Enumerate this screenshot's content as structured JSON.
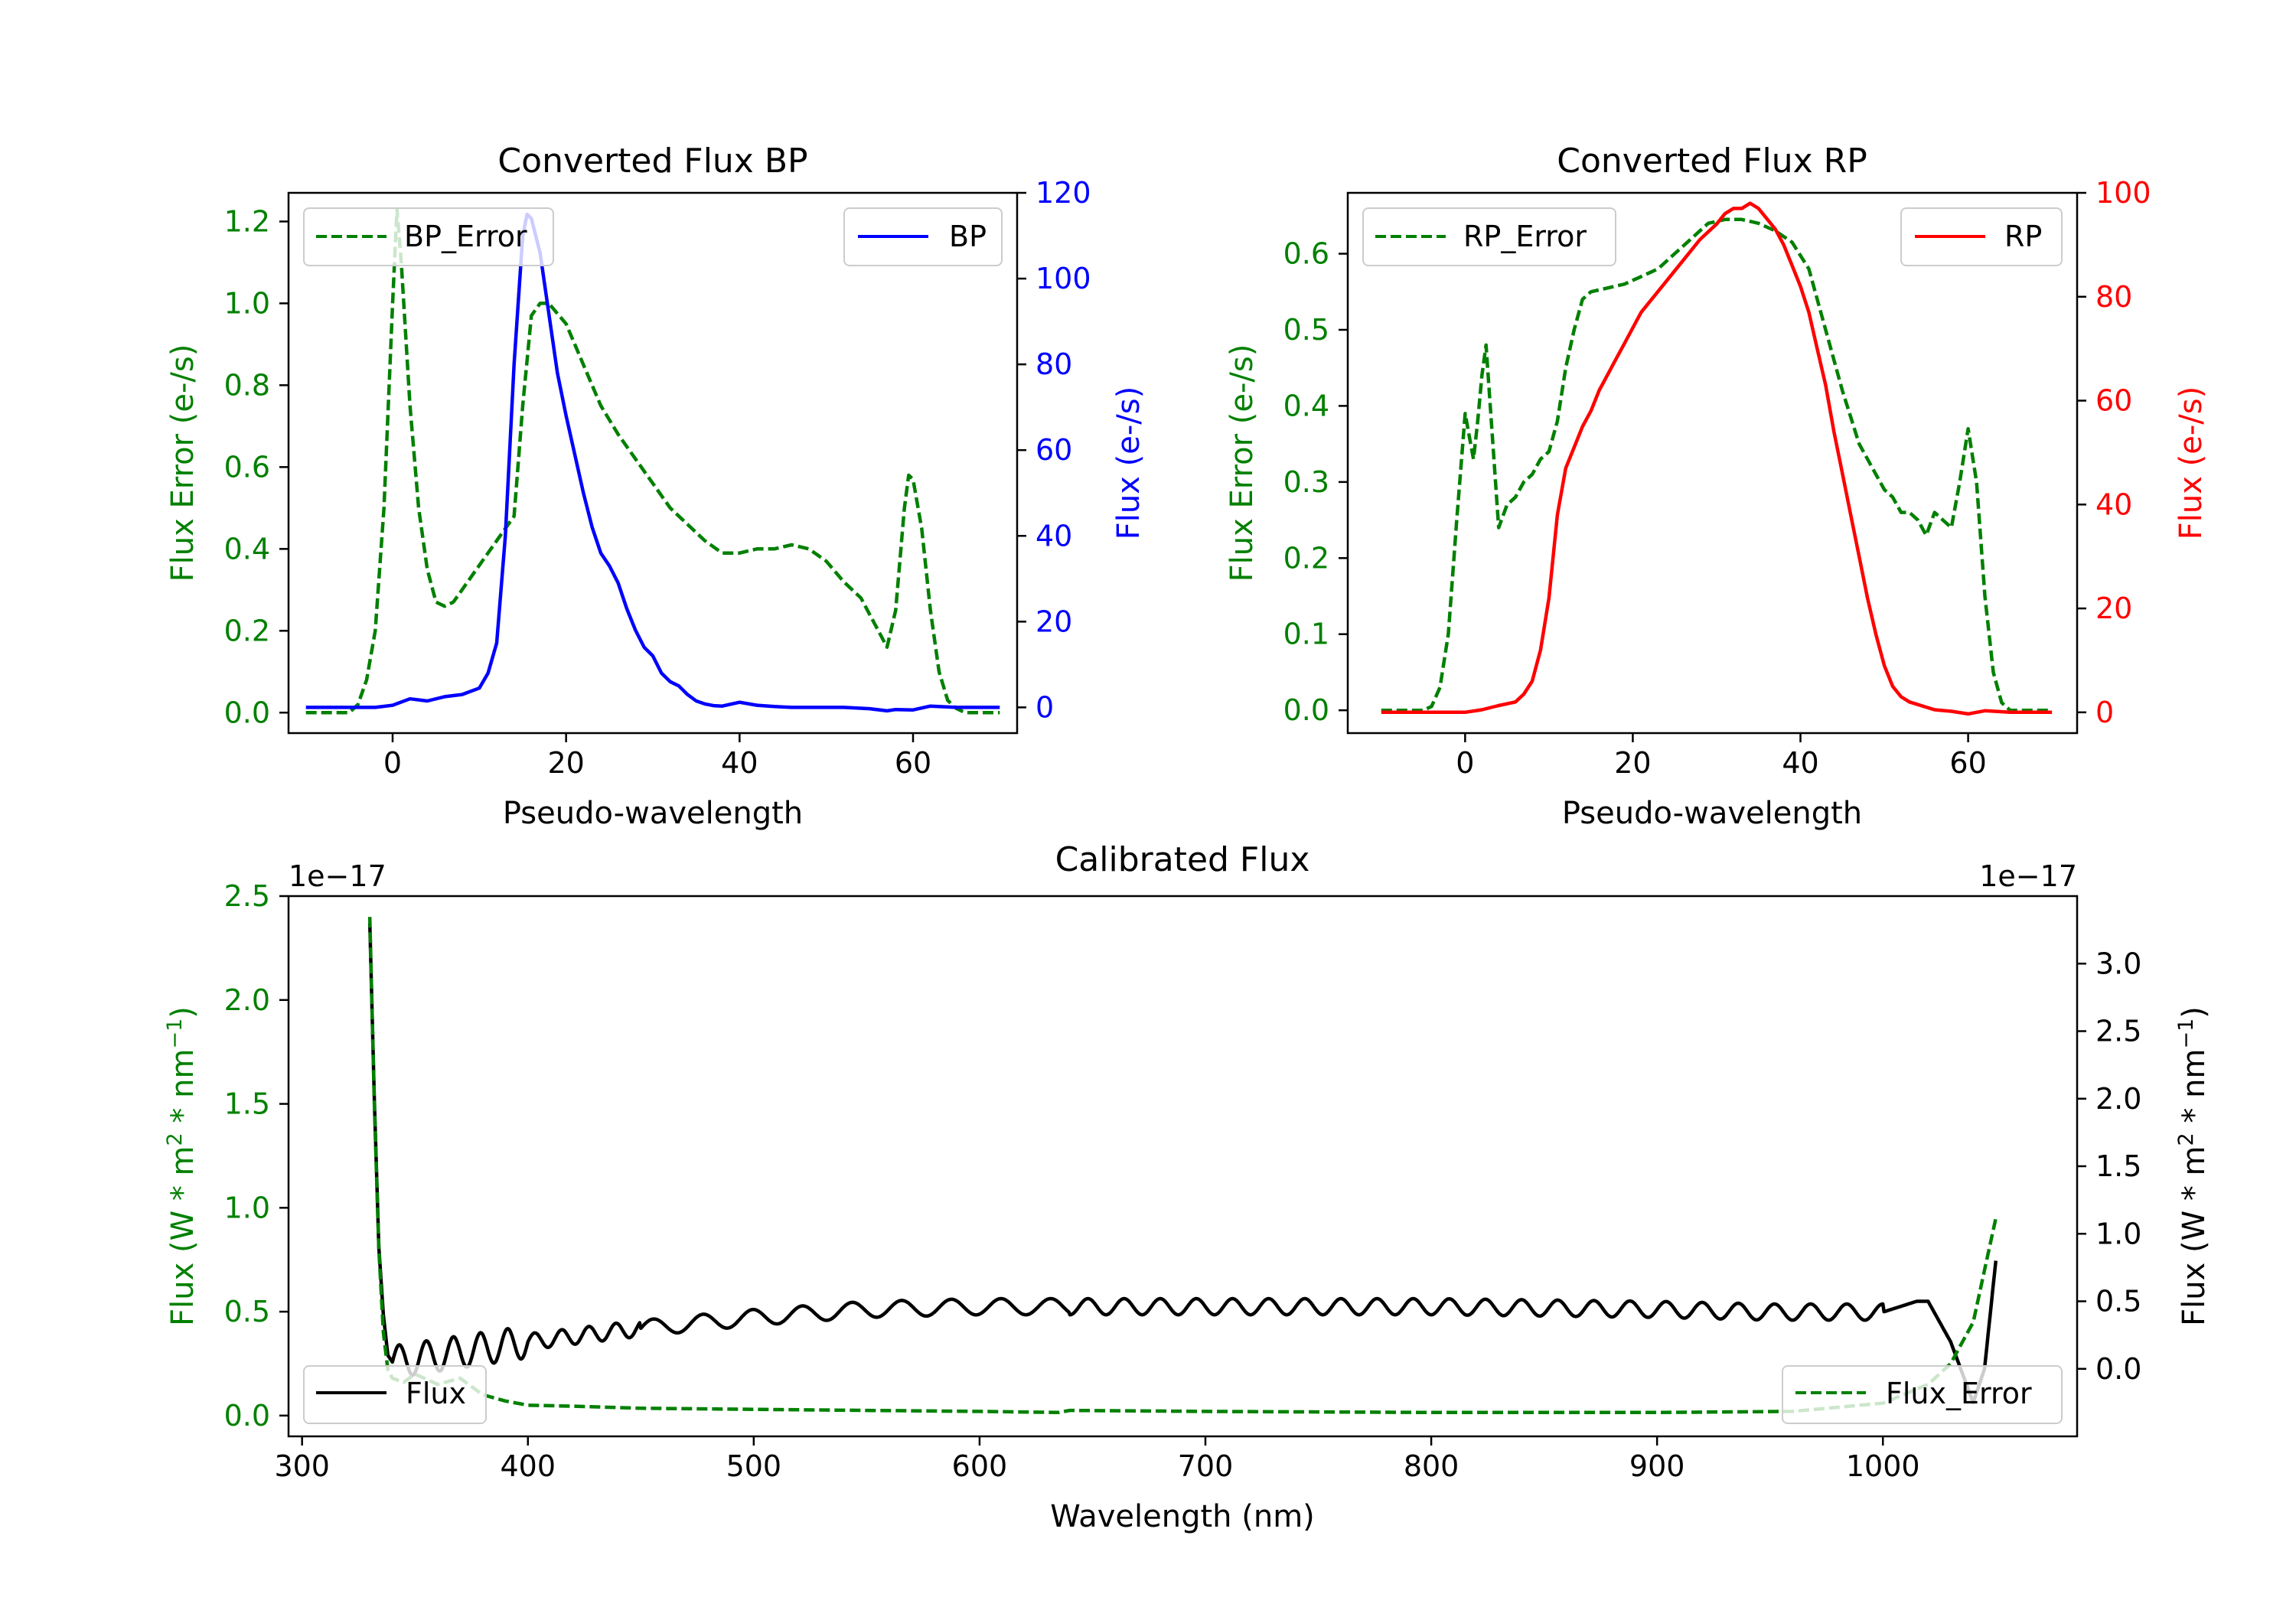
{
  "chart_data": [
    {
      "id": "bp",
      "type": "line",
      "title": "Converted Flux BP",
      "xlabel": "Pseudo-wavelength",
      "ylabel_left": "Flux Error (e-/s)",
      "ylabel_right": "Flux (e-/s)",
      "xlim": [
        -12,
        72
      ],
      "ylim_left": [
        -0.05,
        1.27
      ],
      "ylim_right": [
        -6,
        120
      ],
      "xticks": [
        0,
        20,
        40,
        60
      ],
      "yticks_left": [
        0.0,
        0.2,
        0.4,
        0.6,
        0.8,
        1.0,
        1.2
      ],
      "ytick_labels_left": [
        "0.0",
        "0.2",
        "0.4",
        "0.6",
        "0.8",
        "1.0",
        "1.2"
      ],
      "yticks_right": [
        0,
        20,
        40,
        60,
        80,
        100,
        120
      ],
      "ytick_labels_right": [
        "0",
        "20",
        "40",
        "60",
        "80",
        "100",
        "120"
      ],
      "colors": {
        "left_axis": "#008000",
        "right_axis": "#0000ff"
      },
      "series": [
        {
          "name": "BP_Error",
          "axis": "left",
          "style": "dashed",
          "color": "#008000",
          "x": [
            -10,
            -5,
            -4,
            -3,
            -2,
            -1,
            0,
            0.5,
            1,
            2,
            3,
            4,
            5,
            6,
            7,
            8,
            10,
            12,
            14,
            15,
            16,
            17,
            18,
            20,
            22,
            24,
            26,
            28,
            30,
            32,
            34,
            36,
            38,
            40,
            42,
            44,
            46,
            48,
            50,
            52,
            54,
            55,
            56,
            57,
            58,
            59,
            59.5,
            60,
            61,
            62,
            63,
            64,
            65,
            66,
            70
          ],
          "y": [
            0.0,
            0.0,
            0.02,
            0.08,
            0.2,
            0.5,
            1.0,
            1.23,
            1.1,
            0.75,
            0.5,
            0.35,
            0.27,
            0.26,
            0.27,
            0.3,
            0.36,
            0.42,
            0.48,
            0.75,
            0.97,
            1.0,
            1.0,
            0.95,
            0.85,
            0.75,
            0.68,
            0.62,
            0.56,
            0.5,
            0.46,
            0.42,
            0.39,
            0.39,
            0.4,
            0.4,
            0.41,
            0.4,
            0.37,
            0.32,
            0.28,
            0.24,
            0.2,
            0.16,
            0.25,
            0.5,
            0.58,
            0.57,
            0.45,
            0.25,
            0.1,
            0.03,
            0.01,
            0.0,
            0.0
          ]
        },
        {
          "name": "BP",
          "axis": "right",
          "style": "solid",
          "color": "#0000ff",
          "x": [
            -10,
            -5,
            -2,
            0,
            2,
            4,
            6,
            8,
            10,
            11,
            12,
            13,
            14,
            15,
            15.5,
            16,
            17,
            18,
            19,
            20,
            21,
            22,
            23,
            24,
            25,
            26,
            27,
            28,
            29,
            30,
            31,
            32,
            33,
            34,
            35,
            36,
            37,
            38,
            40,
            42,
            44,
            46,
            48,
            50,
            52,
            55,
            57,
            58,
            60,
            62,
            65,
            70
          ],
          "y": [
            0,
            0,
            0,
            0.5,
            2,
            1.5,
            2.5,
            3,
            4.5,
            8,
            15,
            40,
            80,
            110,
            115,
            114,
            106,
            92,
            78,
            68,
            59,
            50,
            42,
            36,
            33,
            29,
            23,
            18,
            14,
            12,
            8,
            6,
            5,
            3,
            1.5,
            0.8,
            0.4,
            0.3,
            1.2,
            0.5,
            0.2,
            0.0,
            0.0,
            0.0,
            0.0,
            -0.3,
            -0.8,
            -0.5,
            -0.6,
            0.3,
            0.0,
            0.0
          ]
        }
      ],
      "legend": [
        {
          "label": "BP_Error",
          "placement": "top-left"
        },
        {
          "label": "BP",
          "placement": "top-right"
        }
      ]
    },
    {
      "id": "rp",
      "type": "line",
      "title": "Converted Flux RP",
      "xlabel": "Pseudo-wavelength",
      "ylabel_left": "Flux Error (e-/s)",
      "ylabel_right": "Flux (e-/s)",
      "xlim": [
        -14,
        73
      ],
      "ylim_left": [
        -0.03,
        0.68
      ],
      "ylim_right": [
        -4,
        100
      ],
      "xticks": [
        0,
        20,
        40,
        60
      ],
      "yticks_left": [
        0.0,
        0.1,
        0.2,
        0.3,
        0.4,
        0.5,
        0.6
      ],
      "ytick_labels_left": [
        "0.0",
        "0.1",
        "0.2",
        "0.3",
        "0.4",
        "0.5",
        "0.6"
      ],
      "yticks_right": [
        0,
        20,
        40,
        60,
        80,
        100
      ],
      "ytick_labels_right": [
        "0",
        "20",
        "40",
        "60",
        "80",
        "100"
      ],
      "colors": {
        "left_axis": "#008000",
        "right_axis": "#ff0000"
      },
      "series": [
        {
          "name": "RP_Error",
          "axis": "left",
          "style": "dashed",
          "color": "#008000",
          "x": [
            -10,
            -5,
            -4,
            -3,
            -2,
            -1,
            0,
            0.5,
            1,
            1.5,
            2,
            2.5,
            3,
            4,
            5,
            6,
            7,
            8,
            9,
            10,
            11,
            12,
            13,
            14,
            15,
            17,
            19,
            21,
            23,
            25,
            27,
            29,
            31,
            33,
            35,
            37,
            39,
            41,
            43,
            45,
            47,
            49,
            50,
            51,
            52,
            53,
            54,
            55,
            56,
            57,
            58,
            59,
            60,
            61,
            62,
            63,
            64,
            65,
            70
          ],
          "y": [
            0.0,
            0.0,
            0.005,
            0.03,
            0.1,
            0.25,
            0.39,
            0.36,
            0.33,
            0.38,
            0.44,
            0.48,
            0.4,
            0.24,
            0.27,
            0.28,
            0.3,
            0.31,
            0.33,
            0.34,
            0.38,
            0.45,
            0.5,
            0.54,
            0.55,
            0.555,
            0.56,
            0.57,
            0.58,
            0.6,
            0.62,
            0.64,
            0.645,
            0.645,
            0.64,
            0.63,
            0.615,
            0.58,
            0.5,
            0.42,
            0.35,
            0.31,
            0.29,
            0.28,
            0.26,
            0.26,
            0.25,
            0.23,
            0.26,
            0.25,
            0.24,
            0.3,
            0.37,
            0.3,
            0.15,
            0.05,
            0.01,
            0.0,
            0.0
          ]
        },
        {
          "name": "RP",
          "axis": "right",
          "style": "solid",
          "color": "#ff0000",
          "x": [
            -10,
            -5,
            0,
            2,
            4,
            6,
            7,
            8,
            9,
            10,
            11,
            12,
            13,
            14,
            15,
            16,
            17,
            18,
            19,
            20,
            21,
            22,
            24,
            26,
            28,
            30,
            31,
            32,
            33,
            34,
            35,
            36,
            37,
            38,
            39,
            40,
            41,
            42,
            43,
            44,
            45,
            46,
            47,
            48,
            49,
            50,
            51,
            52,
            53,
            54,
            55,
            56,
            58,
            60,
            62,
            65,
            70
          ],
          "y": [
            0,
            0,
            0,
            0.5,
            1.3,
            2,
            3.5,
            6,
            12,
            22,
            38,
            47,
            51,
            55,
            58,
            62,
            65,
            68,
            71,
            74,
            77,
            79,
            83,
            87,
            91,
            94,
            96,
            97,
            97,
            98,
            97,
            95,
            93,
            90,
            86,
            82,
            77,
            70,
            63,
            54,
            46,
            38,
            30,
            22,
            15,
            9,
            5,
            3,
            2,
            1.5,
            1,
            0.5,
            0.2,
            -0.3,
            0.3,
            0.0,
            0.0
          ]
        }
      ],
      "legend": [
        {
          "label": "RP_Error",
          "placement": "top-left"
        },
        {
          "label": "RP",
          "placement": "top-right"
        }
      ]
    },
    {
      "id": "cal",
      "type": "line",
      "title": "Calibrated Flux",
      "xlabel": "Wavelength (nm)",
      "ylabel_left": "Flux (W * m^2 * nm^-1)",
      "ylabel_right": "Flux (W * m^2 * nm^-1)",
      "xlim": [
        294,
        1086
      ],
      "ylim_left": [
        -0.1,
        2.5
      ],
      "ylim_right": [
        -0.5,
        3.5
      ],
      "left_multiplier": "1e−17",
      "right_multiplier": "1e−17",
      "xticks": [
        300,
        400,
        500,
        600,
        700,
        800,
        900,
        1000
      ],
      "yticks_left": [
        0.0,
        0.5,
        1.0,
        1.5,
        2.0,
        2.5
      ],
      "ytick_labels_left": [
        "0.0",
        "0.5",
        "1.0",
        "1.5",
        "2.0",
        "2.5"
      ],
      "yticks_right": [
        0.0,
        0.5,
        1.0,
        1.5,
        2.0,
        2.5,
        3.0
      ],
      "ytick_labels_right": [
        "0.0",
        "0.5",
        "1.0",
        "1.5",
        "2.0",
        "2.5",
        "3.0"
      ],
      "colors": {
        "left_axis": "#008000",
        "right_axis": "#000000"
      },
      "series": [
        {
          "name": "Flux",
          "axis": "right",
          "style": "solid",
          "color": "#000000",
          "model": {
            "x_start": 330,
            "x_end": 1050,
            "initial_spike": {
              "x": [
                330,
                332,
                334,
                336,
                338
              ],
              "y": [
                3.3,
                2.0,
                0.9,
                0.4,
                0.1
              ]
            },
            "baseline": {
              "x": [
                340,
                400,
                450,
                500,
                550,
                600,
                650,
                700,
                800,
                900,
                950,
                1000,
                1015,
                1020,
                1030,
                1040,
                1045,
                1050
              ],
              "y": [
                0.05,
                0.2,
                0.3,
                0.38,
                0.44,
                0.46,
                0.46,
                0.46,
                0.46,
                0.44,
                0.42,
                0.42,
                0.5,
                0.5,
                0.2,
                -0.25,
                0.0,
                0.8
              ]
            },
            "wiggle_amplitude": 0.06
          }
        },
        {
          "name": "Flux_Error",
          "axis": "left",
          "style": "dashed",
          "color": "#008000",
          "x": [
            330,
            332,
            334,
            336,
            338,
            340,
            345,
            350,
            360,
            370,
            380,
            390,
            400,
            420,
            450,
            500,
            550,
            600,
            635,
            640,
            700,
            800,
            900,
            960,
            1000,
            1020,
            1030,
            1035,
            1040,
            1045,
            1050
          ],
          "y": [
            2.4,
            1.5,
            0.8,
            0.4,
            0.22,
            0.18,
            0.16,
            0.2,
            0.15,
            0.18,
            0.1,
            0.07,
            0.05,
            0.045,
            0.035,
            0.03,
            0.025,
            0.02,
            0.015,
            0.025,
            0.02,
            0.015,
            0.015,
            0.02,
            0.06,
            0.15,
            0.25,
            0.35,
            0.45,
            0.7,
            0.95
          ]
        }
      ],
      "legend": [
        {
          "label": "Flux",
          "placement": "bottom-left"
        },
        {
          "label": "Flux_Error",
          "placement": "bottom-right"
        }
      ]
    }
  ]
}
